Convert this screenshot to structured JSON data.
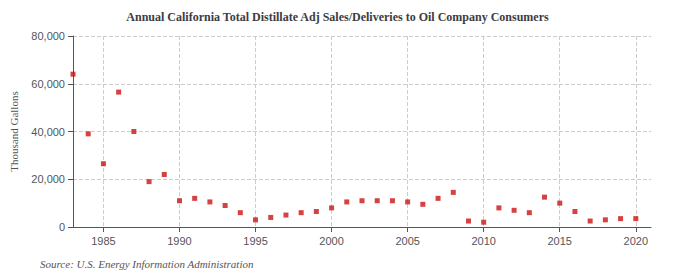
{
  "chart_data": {
    "type": "scatter",
    "title": "Annual California Total Distillate Adj Sales/Deliveries to Oil Company Consumers",
    "ylabel": "Thousand Gallons",
    "annotation": "Source: U.S. Energy Information Administration",
    "x": [
      1983,
      1984,
      1985,
      1986,
      1987,
      1988,
      1989,
      1990,
      1991,
      1992,
      1993,
      1994,
      1995,
      1996,
      1997,
      1998,
      1999,
      2000,
      2001,
      2002,
      2003,
      2004,
      2005,
      2006,
      2007,
      2008,
      2009,
      2010,
      2011,
      2012,
      2013,
      2014,
      2015,
      2016,
      2017,
      2018,
      2019,
      2020
    ],
    "values": [
      64000,
      39000,
      26500,
      56500,
      40000,
      19000,
      22000,
      11000,
      12000,
      10500,
      9000,
      6000,
      3000,
      4000,
      5000,
      6000,
      6500,
      8000,
      10500,
      11000,
      11000,
      11000,
      10500,
      9500,
      12000,
      14500,
      2500,
      2000,
      8000,
      7000,
      6000,
      12500,
      10000,
      6500,
      2500,
      3000,
      3500,
      3500
    ],
    "color": "#cc1111",
    "marker": "square",
    "xlim": [
      1983,
      2021
    ],
    "xticks": [
      1985,
      1990,
      1995,
      2000,
      2005,
      2010,
      2015,
      2020
    ],
    "ylim": [
      0,
      80000
    ],
    "yticks": [
      0,
      {
        "value": 20000,
        "label": "20,000"
      },
      {
        "value": 40000,
        "label": "40,000"
      },
      {
        "value": 60000,
        "label": "60,000"
      },
      {
        "value": 80000,
        "label": "80,000"
      }
    ],
    "grid": true
  }
}
